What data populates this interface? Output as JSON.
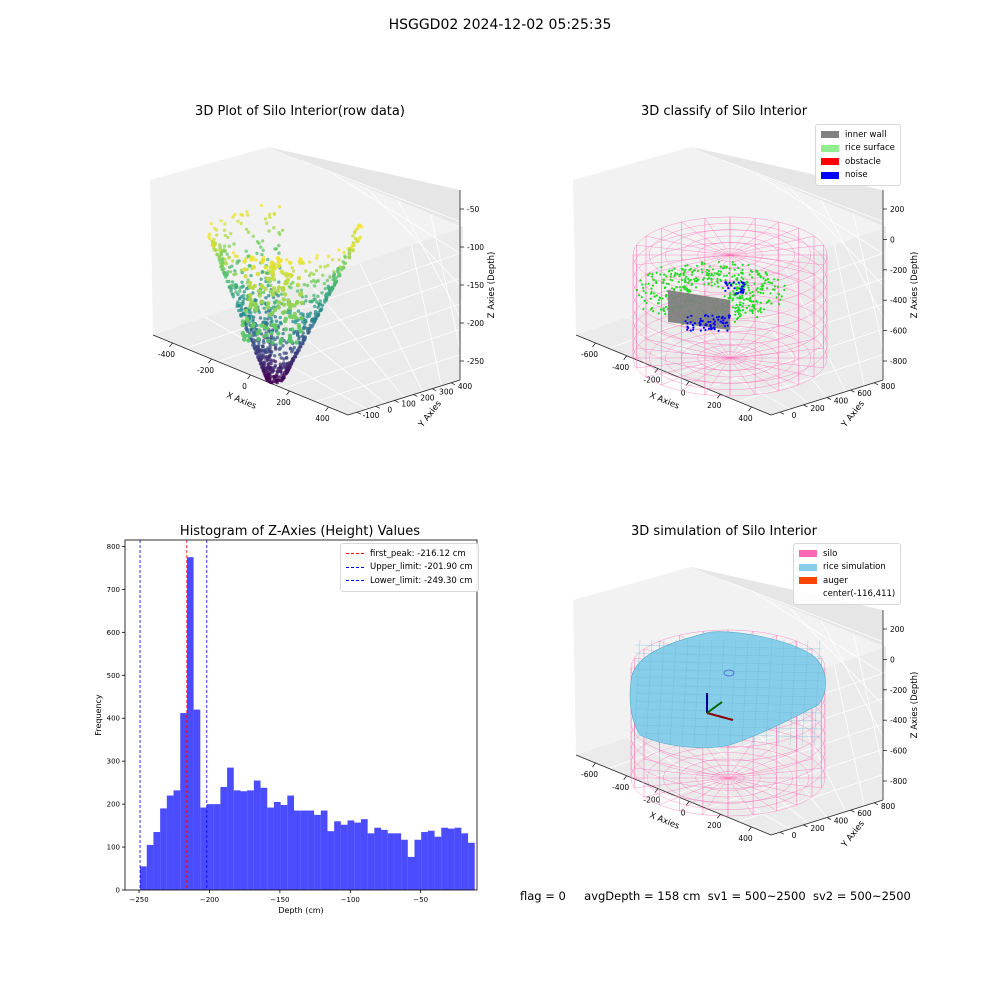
{
  "figure_title": "HSGGD02 2024-12-02 05:25:35",
  "status_line": {
    "flag": "flag = 0",
    "avg_depth": "avgDepth = 158 cm",
    "sv1": "sv1 = 500~2500",
    "sv2": "sv2 = 500~2500"
  },
  "chart_data": [
    {
      "type": "scatter",
      "title": "3D Plot of Silo Interior(row data)",
      "xlabel": "X Axies",
      "ylabel": "Y Axies",
      "zlabel": "Z Axies (Depth)",
      "x_ticks": [
        "-400",
        "-200",
        "0",
        "200",
        "400"
      ],
      "y_ticks": [
        "-100",
        "0",
        "100",
        "200",
        "300",
        "400"
      ],
      "z_ticks": [
        "-50",
        "-100",
        "-150",
        "-200",
        "-250"
      ],
      "colormap": "viridis"
    },
    {
      "type": "scatter",
      "title": "3D classify of Silo Interior",
      "xlabel": "X Axies",
      "ylabel": "Y Axies",
      "zlabel": "Z Axies (Depth)",
      "x_ticks": [
        "-600",
        "-400",
        "-200",
        "0",
        "200",
        "400"
      ],
      "y_ticks": [
        "0",
        "200",
        "400",
        "600",
        "800"
      ],
      "z_ticks": [
        "200",
        "0",
        "-200",
        "-400",
        "-600",
        "-800"
      ],
      "legend": [
        {
          "label": "inner wall",
          "color": "#808080"
        },
        {
          "label": "rice surface",
          "color": "#90ee90"
        },
        {
          "label": "obstacle",
          "color": "#ff0000"
        },
        {
          "label": "noise",
          "color": "#0000ff"
        }
      ],
      "legend_position": "top-right"
    },
    {
      "type": "bar",
      "title": "Histogram of Z-Axies (Height) Values",
      "xlabel": "Depth (cm)",
      "ylabel": "Frequency",
      "xlim": [
        -260,
        -10
      ],
      "ylim": [
        0,
        815
      ],
      "x_ticks": [
        -250,
        -200,
        -150,
        -100,
        -50
      ],
      "y_ticks": [
        0,
        100,
        200,
        300,
        400,
        500,
        600,
        700,
        800
      ],
      "bin_start": -249.3,
      "bin_width": 4.754,
      "values": [
        55,
        105,
        135,
        190,
        220,
        232,
        412,
        775,
        420,
        192,
        200,
        200,
        240,
        285,
        232,
        230,
        232,
        255,
        238,
        192,
        205,
        198,
        220,
        185,
        185,
        185,
        175,
        185,
        137,
        160,
        152,
        162,
        157,
        165,
        132,
        145,
        140,
        132,
        132,
        117,
        77,
        117,
        135,
        138,
        124,
        145,
        143,
        145,
        132,
        110
      ],
      "bar_color": "#0000ff",
      "vlines": [
        {
          "label": "first_peak: -216.12 cm",
          "x": -216.12,
          "color": "#ff0000"
        },
        {
          "label": "Upper_limit: -201.90 cm",
          "x": -201.9,
          "color": "#0000ff"
        },
        {
          "label": "Lower_limit: -249.30 cm",
          "x": -249.3,
          "color": "#0000ff"
        }
      ],
      "legend_position": "top-right"
    },
    {
      "type": "area",
      "title": "3D simulation of Silo Interior",
      "xlabel": "X Axies",
      "ylabel": "Y Axies",
      "zlabel": "Z Axies (Depth)",
      "x_ticks": [
        "-600",
        "-400",
        "-200",
        "0",
        "200",
        "400"
      ],
      "y_ticks": [
        "0",
        "200",
        "400",
        "600",
        "800"
      ],
      "z_ticks": [
        "200",
        "0",
        "-200",
        "-400",
        "-600",
        "-800"
      ],
      "legend": [
        {
          "label": "silo",
          "color": "#ff69b4"
        },
        {
          "label": "rice simulation",
          "color": "#87ceeb"
        },
        {
          "label": "auger",
          "color": "#ff4500"
        },
        {
          "label": "center(-116,411)",
          "color": ""
        }
      ],
      "legend_position": "top-right"
    }
  ]
}
